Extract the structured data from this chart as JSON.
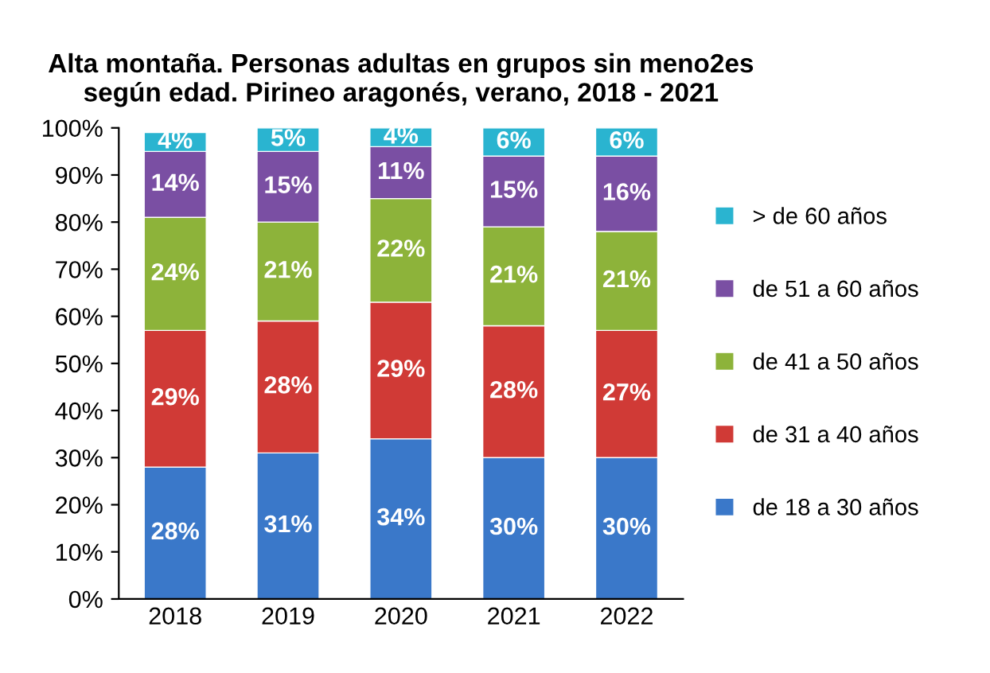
{
  "chart_data": {
    "type": "bar",
    "stacked": true,
    "title": "Alta montaña. Personas adultas en grupos sin meno2es\nsegún edad. Pirineo aragonés, verano, 2018 - 2021",
    "categories": [
      "2018",
      "2019",
      "2020",
      "2021",
      "2022"
    ],
    "series": [
      {
        "name": "de 18 a 30 años",
        "color": "#3a78c9",
        "values": [
          28,
          31,
          34,
          30,
          30
        ],
        "value_labels": [
          "28%",
          "31%",
          "34%",
          "30%",
          "30%"
        ]
      },
      {
        "name": "de 31 a 40 años",
        "color": "#d03a36",
        "values": [
          29,
          28,
          29,
          28,
          27
        ],
        "value_labels": [
          "29%",
          "28%",
          "29%",
          "28%",
          "27%"
        ]
      },
      {
        "name": "de 41 a 50 años",
        "color": "#8db33a",
        "values": [
          24,
          21,
          22,
          21,
          21
        ],
        "value_labels": [
          "24%",
          "21%",
          "22%",
          "21%",
          "21%"
        ]
      },
      {
        "name": "de 51 a 60 años",
        "color": "#7a4fa3",
        "values": [
          14,
          15,
          11,
          15,
          16
        ],
        "value_labels": [
          "14%",
          "15%",
          "11%",
          "15%",
          "16%"
        ]
      },
      {
        "name": "> de 60 años",
        "color": "#2ab4d0",
        "values": [
          4,
          5,
          4,
          6,
          6
        ],
        "value_labels": [
          "4%",
          "5%",
          "4%",
          "6%",
          "6%"
        ]
      }
    ],
    "ylim": [
      0,
      100
    ],
    "yticks": [
      {
        "value": 0,
        "label": "0%"
      },
      {
        "value": 10,
        "label": "10%"
      },
      {
        "value": 20,
        "label": "20%"
      },
      {
        "value": 30,
        "label": "30%"
      },
      {
        "value": 40,
        "label": "40%"
      },
      {
        "value": 50,
        "label": "50%"
      },
      {
        "value": 60,
        "label": "60%"
      },
      {
        "value": 70,
        "label": "70%"
      },
      {
        "value": 80,
        "label": "80%"
      },
      {
        "value": 90,
        "label": "90%"
      },
      {
        "value": 100,
        "label": "100%"
      }
    ],
    "legend": "right",
    "grid": false
  }
}
